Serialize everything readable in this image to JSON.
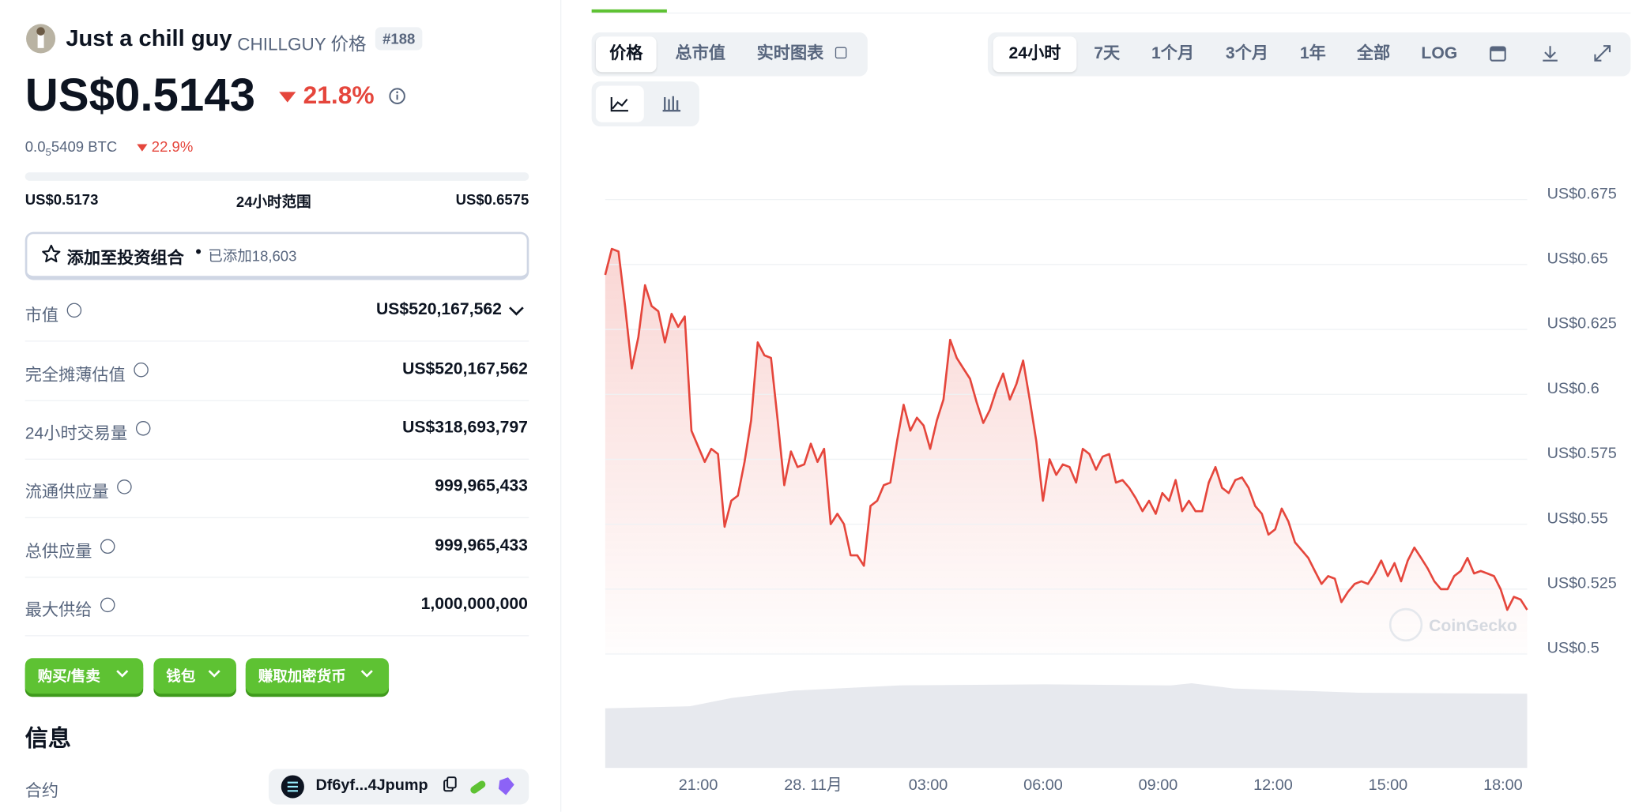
{
  "coin": {
    "name": "Just a chill guy",
    "symbol": "CHILLGUY 价格",
    "rank": "#188",
    "price": "US$0.5143",
    "change": "21.8%",
    "btc_prefix": "0.0",
    "btc_sub": "5",
    "btc_rest": "5409 BTC",
    "btc_change": "22.9%"
  },
  "range": {
    "low": "US$0.5173",
    "label": "24小时范围",
    "high": "US$0.6575"
  },
  "portfolio": {
    "label": "添加至投资组合",
    "added": "已添加18,603"
  },
  "stats": [
    {
      "label": "市值",
      "value": "US$520,167,562"
    },
    {
      "label": "完全摊薄估值",
      "value": "US$520,167,562"
    },
    {
      "label": "24小时交易量",
      "value": "US$318,693,797"
    },
    {
      "label": "流通供应量",
      "value": "999,965,433"
    },
    {
      "label": "总供应量",
      "value": "999,965,433"
    },
    {
      "label": "最大供给",
      "value": "1,000,000,000"
    }
  ],
  "buttons": [
    "购买/售卖",
    "钱包",
    "赚取加密货币"
  ],
  "info": {
    "title": "信息",
    "contract_label": "合约",
    "contract": "Df6yf...4Jpump"
  },
  "tabs": [
    "价格",
    "总市值",
    "实时图表"
  ],
  "ranges": [
    "24小时",
    "7天",
    "1个月",
    "3个月",
    "1年",
    "全部",
    "LOG"
  ],
  "chart_data": {
    "type": "line",
    "x_labels": [
      "21:00",
      "28. 11月",
      "03:00",
      "06:00",
      "09:00",
      "12:00",
      "15:00",
      "18:00"
    ],
    "series": [
      {
        "color": "#e5463c",
        "values": [
          0.646,
          0.656,
          0.655,
          0.634,
          0.61,
          0.622,
          0.642,
          0.634,
          0.632,
          0.62,
          0.631,
          0.626,
          0.63,
          0.586,
          0.58,
          0.574,
          0.579,
          0.577,
          0.549,
          0.559,
          0.561,
          0.574,
          0.59,
          0.62,
          0.615,
          0.614,
          0.59,
          0.565,
          0.578,
          0.572,
          0.573,
          0.581,
          0.574,
          0.579,
          0.55,
          0.554,
          0.55,
          0.538,
          0.538,
          0.534,
          0.557,
          0.559,
          0.565,
          0.566,
          0.582,
          0.596,
          0.586,
          0.591,
          0.588,
          0.579,
          0.59,
          0.598,
          0.621,
          0.614,
          0.61,
          0.606,
          0.597,
          0.589,
          0.594,
          0.602,
          0.608,
          0.598,
          0.604,
          0.613,
          0.598,
          0.582,
          0.559,
          0.575,
          0.569,
          0.573,
          0.572,
          0.566,
          0.579,
          0.577,
          0.571,
          0.576,
          0.577,
          0.566,
          0.567,
          0.564,
          0.56,
          0.555,
          0.559,
          0.554,
          0.562,
          0.559,
          0.567,
          0.555,
          0.559,
          0.555,
          0.555,
          0.566,
          0.572,
          0.564,
          0.562,
          0.567,
          0.568,
          0.564,
          0.557,
          0.554,
          0.546,
          0.548,
          0.556,
          0.551,
          0.543,
          0.54,
          0.537,
          0.532,
          0.527,
          0.53,
          0.529,
          0.52,
          0.524,
          0.527,
          0.528,
          0.527,
          0.531,
          0.536,
          0.53,
          0.535,
          0.528,
          0.536,
          0.541,
          0.537,
          0.533,
          0.528,
          0.525,
          0.525,
          0.53,
          0.532,
          0.537,
          0.531,
          0.532,
          0.531,
          0.53,
          0.525,
          0.517,
          0.522,
          0.521,
          0.517
        ]
      }
    ],
    "ylim": [
      0.5,
      0.675
    ],
    "yticks": [
      {
        "value": 0.5,
        "label": "US$0.5"
      },
      {
        "value": 0.525,
        "label": "US$0.525"
      },
      {
        "value": 0.55,
        "label": "US$0.55"
      },
      {
        "value": 0.575,
        "label": "US$0.575"
      },
      {
        "value": 0.6,
        "label": "US$0.6"
      },
      {
        "value": 0.625,
        "label": "US$0.625"
      },
      {
        "value": 0.65,
        "label": "US$0.65"
      },
      {
        "value": 0.675,
        "label": "US$0.675"
      }
    ],
    "grid": true,
    "watermark": "CoinGecko"
  }
}
